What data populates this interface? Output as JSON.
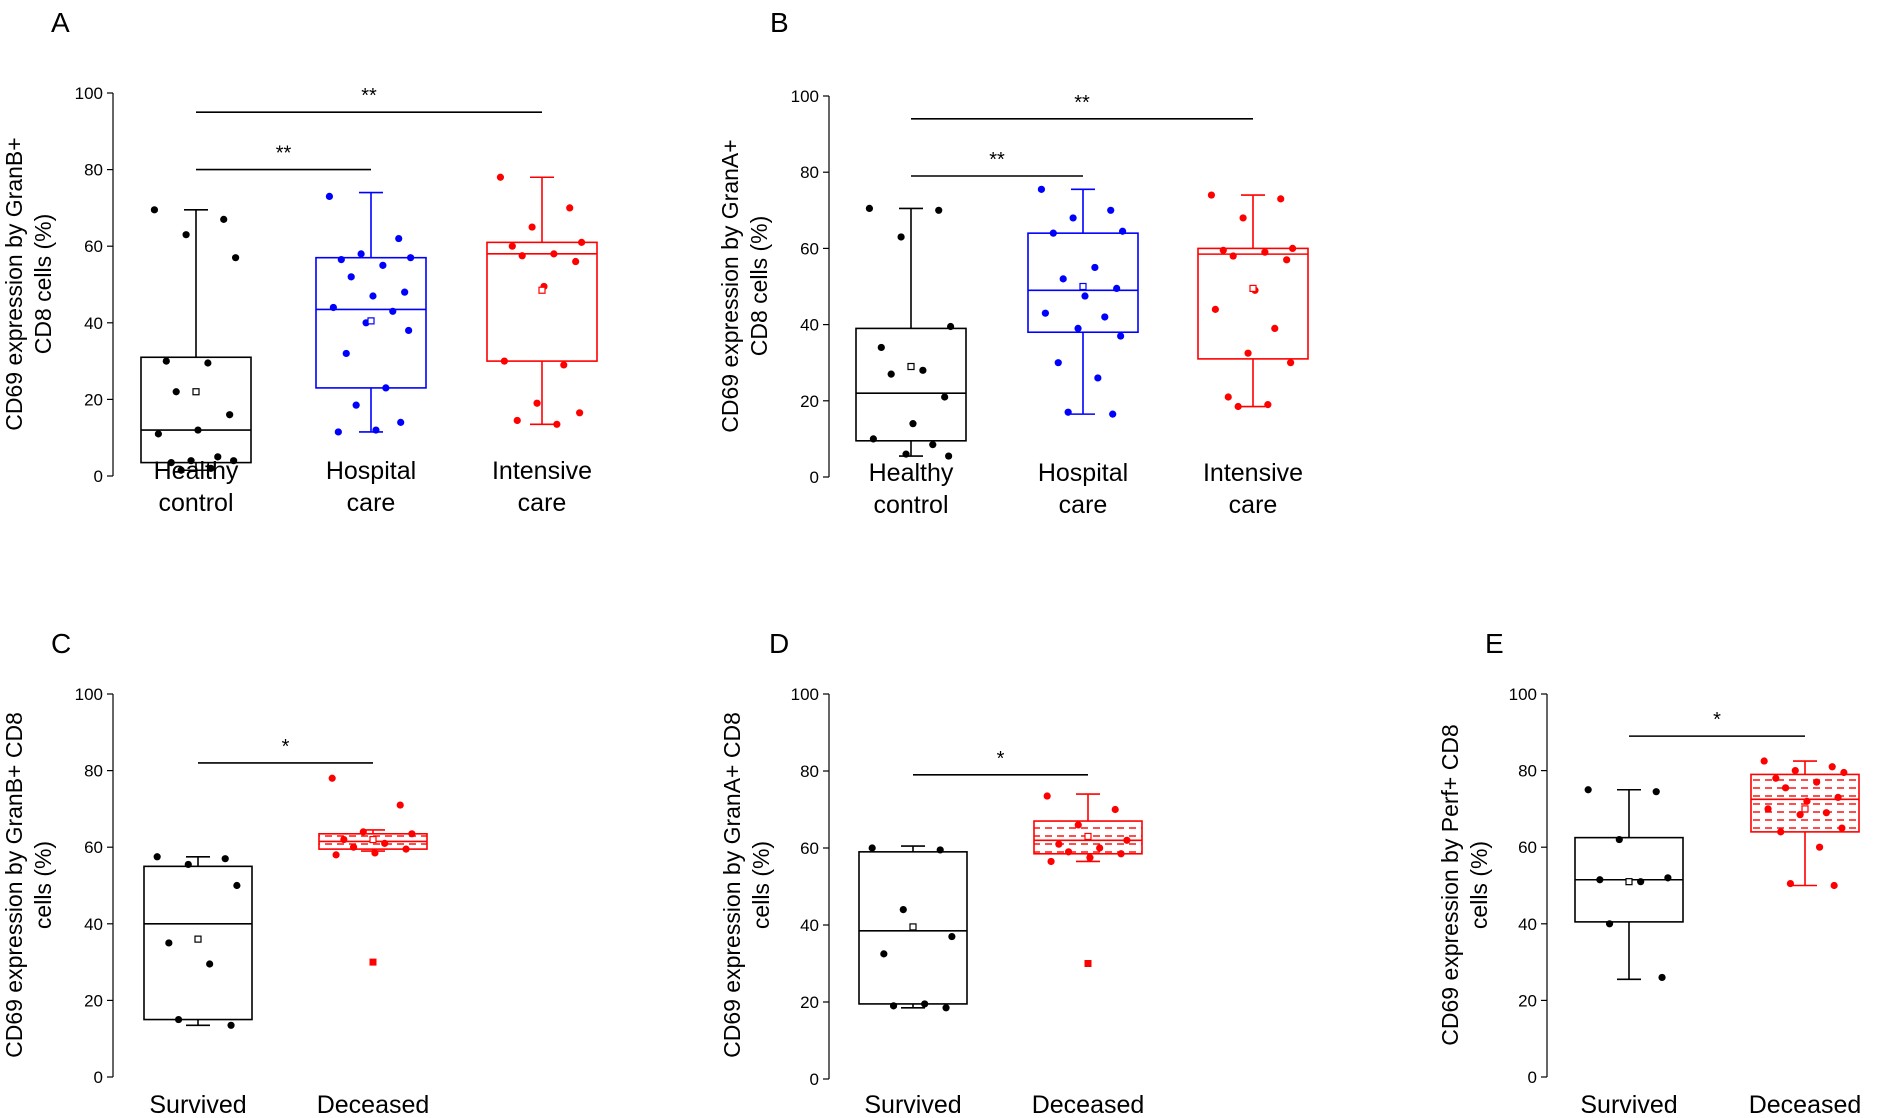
{
  "figure": {
    "colors": {
      "healthy": "#000000",
      "hospital": "#0000ff",
      "intensive": "#ff0000"
    }
  },
  "chart_data": [
    {
      "panel": "A",
      "type": "box",
      "ylabel_lines": [
        "CD69 expression by GranB+",
        "CD8 cells (%)"
      ],
      "ylim": [
        0,
        100
      ],
      "yticks": [
        0,
        20,
        40,
        60,
        80,
        100
      ],
      "groups": [
        {
          "label_lines": [
            "Healthy",
            "control"
          ],
          "color": "#000000",
          "box": {
            "min": 1.5,
            "q1": 3.5,
            "median": 12,
            "q3": 31,
            "max": 69.5
          },
          "mean": 22,
          "points": [
            69.5,
            67,
            63,
            57,
            30,
            29.5,
            22,
            16,
            12,
            11,
            5,
            4,
            4,
            3.5,
            2,
            1.5
          ]
        },
        {
          "label_lines": [
            "Hospital",
            "care"
          ],
          "color": "#0000ff",
          "box": {
            "min": 11.5,
            "q1": 23,
            "median": 43.5,
            "q3": 57,
            "max": 74
          },
          "mean": 40.5,
          "points": [
            73,
            62,
            58,
            57,
            56.5,
            55,
            52,
            48,
            47,
            44,
            43,
            40,
            38,
            32,
            23,
            18.5,
            14,
            12,
            11.5
          ]
        },
        {
          "label_lines": [
            "Intensive",
            "care"
          ],
          "color": "#ff0000",
          "box": {
            "min": 13.5,
            "q1": 30,
            "median": 58,
            "q3": 61,
            "max": 78
          },
          "mean": 48.5,
          "points": [
            78,
            70,
            65,
            61,
            60,
            58,
            57.5,
            56,
            49.5,
            30,
            29,
            19,
            16.5,
            14.5,
            13.5
          ]
        }
      ],
      "significance": [
        {
          "from": 0,
          "to": 2,
          "label": "**",
          "level": 95
        },
        {
          "from": 0,
          "to": 1,
          "label": "**",
          "level": 80
        }
      ]
    },
    {
      "panel": "B",
      "type": "box",
      "ylabel_lines": [
        "CD69 expression by GranA+",
        "CD8 cells (%)"
      ],
      "ylim": [
        0,
        100
      ],
      "yticks": [
        0,
        20,
        40,
        60,
        80,
        100
      ],
      "groups": [
        {
          "label_lines": [
            "Healthy",
            "control"
          ],
          "color": "#000000",
          "box": {
            "min": 5.5,
            "q1": 9.5,
            "median": 22,
            "q3": 39,
            "max": 70.5
          },
          "mean": 29,
          "points": [
            70.5,
            70,
            63,
            39.5,
            34,
            28,
            27,
            21,
            14,
            10,
            8.5,
            6,
            5.5
          ]
        },
        {
          "label_lines": [
            "Hospital",
            "care"
          ],
          "color": "#0000ff",
          "box": {
            "min": 16.5,
            "q1": 38,
            "median": 49,
            "q3": 64,
            "max": 75.5
          },
          "mean": 50,
          "points": [
            75.5,
            70,
            68,
            64.5,
            64,
            55,
            52,
            49.5,
            47.5,
            43,
            42,
            39,
            37,
            30,
            26,
            17,
            16.5
          ]
        },
        {
          "label_lines": [
            "Intensive",
            "care"
          ],
          "color": "#ff0000",
          "box": {
            "min": 18.5,
            "q1": 31,
            "median": 58.5,
            "q3": 60,
            "max": 74
          },
          "mean": 49.5,
          "points": [
            74,
            73,
            68,
            60,
            59.5,
            59,
            58,
            57,
            49,
            44,
            39,
            32.5,
            30,
            21,
            19,
            18.5
          ]
        }
      ],
      "significance": [
        {
          "from": 0,
          "to": 2,
          "label": "**",
          "level": 94
        },
        {
          "from": 0,
          "to": 1,
          "label": "**",
          "level": 79
        }
      ]
    },
    {
      "panel": "C",
      "type": "box",
      "ylabel_lines": [
        "CD69 expression by GranB+ CD8",
        "cells (%)"
      ],
      "ylim": [
        0,
        100
      ],
      "yticks": [
        0,
        20,
        40,
        60,
        80,
        100
      ],
      "groups": [
        {
          "label_lines": [
            "Survived"
          ],
          "color": "#000000",
          "box": {
            "min": 13.5,
            "q1": 15,
            "median": 40,
            "q3": 55,
            "max": 57.5
          },
          "mean": 36,
          "points": [
            57.5,
            57,
            55.5,
            50,
            35,
            29.5,
            15,
            13.5
          ]
        },
        {
          "label_lines": [
            "Deceased"
          ],
          "color": "#ff0000",
          "hatched": true,
          "box": {
            "min": 59,
            "q1": 59.5,
            "median": 61.5,
            "q3": 63.5,
            "max": 64.5
          },
          "mean": 62,
          "points": [
            78,
            71,
            64,
            63.5,
            62,
            61,
            60,
            59.5,
            58.5,
            58
          ],
          "outliers": [
            30
          ]
        }
      ],
      "significance": [
        {
          "from": 0,
          "to": 1,
          "label": "*",
          "level": 82
        }
      ]
    },
    {
      "panel": "D",
      "type": "box",
      "ylabel_lines": [
        "CD69 expression by GranA+ CD8",
        "cells (%)"
      ],
      "ylim": [
        0,
        100
      ],
      "yticks": [
        0,
        20,
        40,
        60,
        80,
        100
      ],
      "groups": [
        {
          "label_lines": [
            "Survived"
          ],
          "color": "#000000",
          "box": {
            "min": 18.5,
            "q1": 19.5,
            "median": 38.5,
            "q3": 59,
            "max": 60.5
          },
          "mean": 39.5,
          "points": [
            60,
            59.5,
            44,
            37,
            32.5,
            19.5,
            19,
            18.5
          ]
        },
        {
          "label_lines": [
            "Deceased"
          ],
          "color": "#ff0000",
          "hatched": true,
          "box": {
            "min": 56.5,
            "q1": 58.5,
            "median": 62,
            "q3": 67,
            "max": 74
          },
          "mean": 63,
          "points": [
            73.5,
            70,
            66,
            62,
            61,
            60,
            59,
            58.5,
            57.5,
            56.5
          ],
          "outliers": [
            30
          ]
        }
      ],
      "significance": [
        {
          "from": 0,
          "to": 1,
          "label": "*",
          "level": 79
        }
      ]
    },
    {
      "panel": "E",
      "type": "box",
      "ylabel_lines": [
        "CD69 expression by Perf+ CD8",
        "cells (%)"
      ],
      "ylim": [
        0,
        100
      ],
      "yticks": [
        0,
        20,
        40,
        60,
        80,
        100
      ],
      "groups": [
        {
          "label_lines": [
            "Survived"
          ],
          "color": "#000000",
          "box": {
            "min": 25.5,
            "q1": 40.5,
            "median": 51.5,
            "q3": 62.5,
            "max": 75
          },
          "mean": 51,
          "points": [
            75,
            74.5,
            62,
            52,
            51.5,
            51,
            40,
            26
          ]
        },
        {
          "label_lines": [
            "Deceased"
          ],
          "color": "#ff0000",
          "hatched": true,
          "box": {
            "min": 50,
            "q1": 64,
            "median": 72.5,
            "q3": 79,
            "max": 82.5
          },
          "mean": 70,
          "points": [
            82.5,
            81,
            80,
            79.5,
            78,
            77,
            75.5,
            73,
            72,
            70,
            69,
            68.5,
            65,
            64,
            60,
            50.5,
            50
          ]
        }
      ],
      "significance": [
        {
          "from": 0,
          "to": 1,
          "label": "*",
          "level": 89
        }
      ]
    }
  ]
}
